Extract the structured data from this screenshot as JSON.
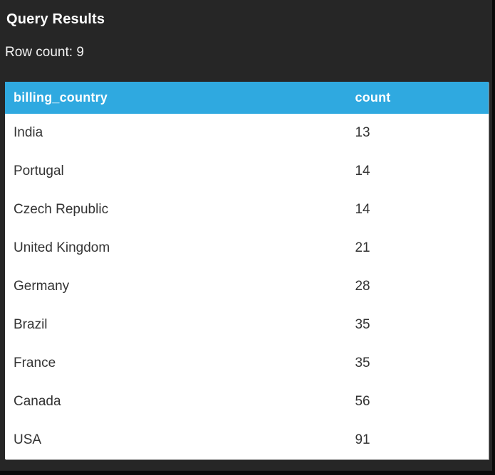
{
  "panel": {
    "title": "Query Results",
    "row_count_label": "Row count: 9"
  },
  "colors": {
    "background": "#262626",
    "edge": "#0A0A0A",
    "header_bg": "#2FA9E0",
    "header_text": "#FFFFFF",
    "body_bg": "#FFFFFF",
    "body_text": "#333333"
  },
  "table": {
    "columns": [
      {
        "key": "billing_country",
        "label": "billing_country"
      },
      {
        "key": "count",
        "label": "count"
      }
    ],
    "rows": [
      {
        "billing_country": "India",
        "count": "13"
      },
      {
        "billing_country": "Portugal",
        "count": "14"
      },
      {
        "billing_country": "Czech Republic",
        "count": "14"
      },
      {
        "billing_country": "United Kingdom",
        "count": "21"
      },
      {
        "billing_country": "Germany",
        "count": "28"
      },
      {
        "billing_country": "Brazil",
        "count": "35"
      },
      {
        "billing_country": "France",
        "count": "35"
      },
      {
        "billing_country": "Canada",
        "count": "56"
      },
      {
        "billing_country": "USA",
        "count": "91"
      }
    ]
  }
}
